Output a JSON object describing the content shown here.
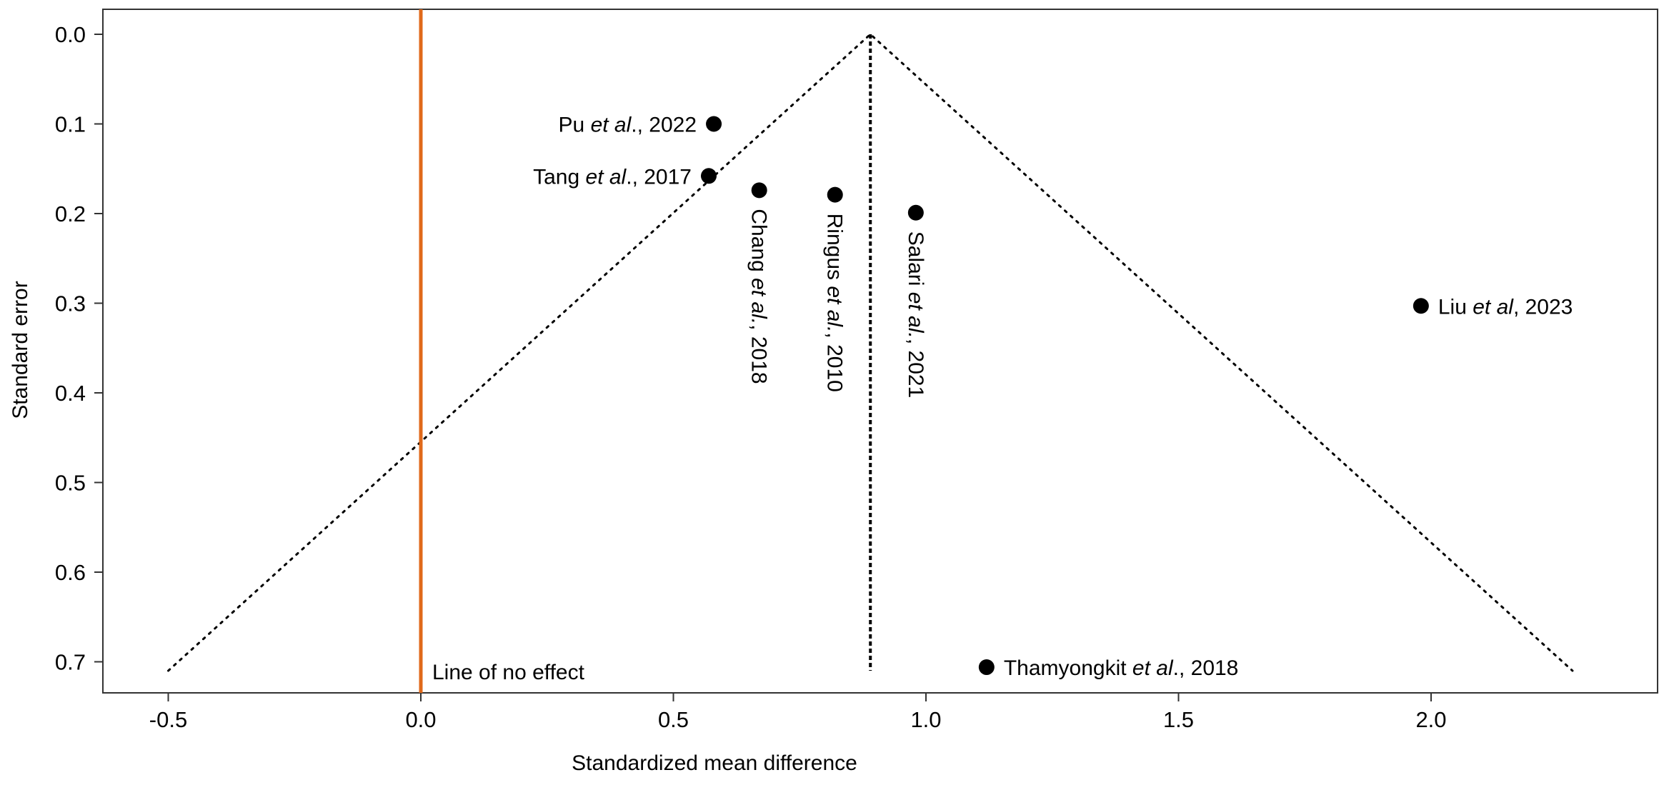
{
  "chart_data": {
    "type": "scatter",
    "subtype": "funnel-plot",
    "xlabel": "Standardized mean difference",
    "ylabel": "Standard error",
    "xlim": [
      -0.62,
      2.45
    ],
    "ylim": [
      0.74,
      -0.03
    ],
    "y_reversed": true,
    "xticks": [
      "-0.5",
      "0.0",
      "0.5",
      "1.0",
      "1.5",
      "2.0"
    ],
    "xtick_values": [
      -0.5,
      0,
      0.5,
      1.0,
      1.5,
      2.0
    ],
    "yticks": [
      "0.0",
      "0.1",
      "0.2",
      "0.3",
      "0.4",
      "0.5",
      "0.6",
      "0.7"
    ],
    "ytick_values": [
      0,
      0.1,
      0.2,
      0.3,
      0.4,
      0.5,
      0.6,
      0.7
    ],
    "grid": false,
    "points": [
      {
        "name": "Pu",
        "etal": "et al",
        "rest": "., 2022",
        "x": 0.58,
        "y": 0.1,
        "label_pos": "left"
      },
      {
        "name": "Tang",
        "etal": "et al",
        "rest": "., 2017",
        "x": 0.57,
        "y": 0.158,
        "label_pos": "left"
      },
      {
        "name": "Chang",
        "etal": "et al.",
        "rest": ", 2018",
        "x": 0.67,
        "y": 0.174,
        "label_pos": "below-rotated"
      },
      {
        "name": "Ringus",
        "etal": "et al.",
        "rest": ", 2010",
        "x": 0.82,
        "y": 0.179,
        "label_pos": "below-rotated"
      },
      {
        "name": "Salari",
        "etal": "et al.",
        "rest": ", 2021",
        "x": 0.98,
        "y": 0.199,
        "label_pos": "below-rotated"
      },
      {
        "name": "Liu",
        "etal": "et al",
        "rest": ", 2023",
        "x": 1.98,
        "y": 0.303,
        "label_pos": "right"
      },
      {
        "name": "Thamyongkit",
        "etal": "et al",
        "rest": "., 2018",
        "x": 1.12,
        "y": 0.706,
        "label_pos": "right"
      }
    ],
    "funnel": {
      "apex_x": 0.89,
      "apex_y": 0,
      "base_y": 0.71,
      "base_left_x": -0.5,
      "base_right_x": 2.28
    },
    "pooled_estimate": 0.89,
    "null_line": {
      "x": 0,
      "label": "Line of no effect",
      "color": "#E06A1B"
    },
    "colors": {
      "points": "#000000",
      "funnel": "#000000",
      "null_line": "#E06A1B"
    }
  }
}
